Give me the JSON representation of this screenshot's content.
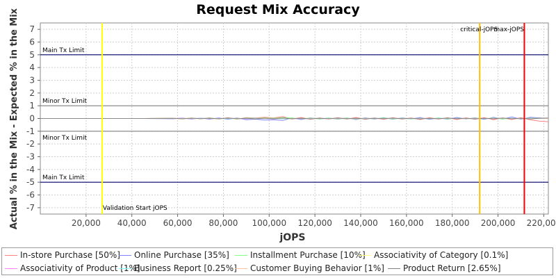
{
  "chart_data": {
    "type": "line",
    "title": "Request Mix Accuracy",
    "xlabel": "jOPS",
    "ylabel": "Actual % in the Mix - Expected % in the Mix",
    "xlim": [
      0,
      222000
    ],
    "ylim": [
      -7.5,
      7.5
    ],
    "x_ticks": [
      20000,
      40000,
      60000,
      80000,
      100000,
      120000,
      140000,
      160000,
      180000,
      200000,
      220000
    ],
    "x_tick_labels": [
      "20,000",
      "40,000",
      "60,000",
      "80,000",
      "100,000",
      "120,000",
      "140,000",
      "160,000",
      "180,000",
      "200,000",
      "220,000"
    ],
    "y_ticks": [
      7,
      6,
      5,
      4,
      3,
      2,
      1,
      0,
      -1,
      -2,
      -3,
      -4,
      -5,
      -6,
      -7
    ],
    "y_tick_labels": [
      "7",
      "6",
      "5",
      "4",
      "3",
      "2",
      "1",
      "0",
      "-1",
      "-2",
      "-3",
      "-4",
      "-5",
      "-6",
      "-7"
    ],
    "grid": true,
    "legend_position": "bottom",
    "horizontal_limits": [
      {
        "label": "Main Tx Limit",
        "y": 5,
        "color": "#000066",
        "label_side": "above"
      },
      {
        "label": "Minor Tx Limit",
        "y": 1,
        "color": "#808080",
        "label_side": "above"
      },
      {
        "label": "Minor Tx Limit",
        "y": -1,
        "color": "#808080",
        "label_side": "below"
      },
      {
        "label": "Main Tx Limit",
        "y": -5,
        "color": "#000066",
        "label_side": "above"
      }
    ],
    "vertical_markers": [
      {
        "label": "Validation Start jOPS",
        "x": 27000,
        "color": "#ffff00",
        "label_pos": "bottom"
      },
      {
        "label": "critical-jOPS",
        "x": 192000,
        "color": "#ffc000",
        "label_pos": "top"
      },
      {
        "label": "max-jOPS",
        "x": 211500,
        "color": "#ff0000",
        "label_pos": "top"
      }
    ],
    "x": [
      0,
      27000,
      46000,
      58000,
      62000,
      66000,
      70000,
      74000,
      78000,
      82000,
      86000,
      90000,
      94000,
      98000,
      102000,
      106000,
      110000,
      114000,
      118000,
      122000,
      126000,
      130000,
      134000,
      138000,
      142000,
      146000,
      150000,
      154000,
      158000,
      162000,
      166000,
      170000,
      174000,
      178000,
      182000,
      186000,
      190000,
      194000,
      198000,
      202000,
      206000,
      210000,
      214000,
      218000,
      222000
    ],
    "series": [
      {
        "name": "In-store Purchase [50%]",
        "color": "#ff8080",
        "values": [
          0,
          0,
          0,
          0.02,
          -0.03,
          0.04,
          -0.02,
          0.05,
          -0.04,
          0.06,
          -0.05,
          0.07,
          0.05,
          0.1,
          0.05,
          0.15,
          -0.05,
          0.08,
          -0.06,
          0.05,
          -0.04,
          0.06,
          -0.05,
          0.08,
          -0.06,
          0.05,
          -0.07,
          0.06,
          -0.05,
          0.04,
          -0.08,
          0.07,
          -0.05,
          0.06,
          -0.08,
          0.05,
          -0.06,
          0.07,
          -0.1,
          0.05,
          -0.08,
          0.06,
          -0.1,
          -0.2,
          -0.25
        ]
      },
      {
        "name": "Online Purchase [35%]",
        "color": "#8080ff",
        "values": [
          0,
          0,
          0,
          -0.02,
          0.03,
          -0.04,
          0.03,
          -0.05,
          0.04,
          -0.06,
          0.05,
          -0.1,
          -0.05,
          -0.12,
          -0.1,
          -0.15,
          0.05,
          -0.08,
          0.06,
          -0.05,
          0.04,
          -0.06,
          0.05,
          -0.08,
          0.06,
          -0.05,
          0.07,
          -0.06,
          0.05,
          -0.04,
          0.08,
          -0.07,
          0.05,
          -0.06,
          0.08,
          -0.05,
          0.06,
          -0.07,
          0.1,
          -0.05,
          0.12,
          -0.06,
          0.1,
          0.05,
          0.0
        ]
      },
      {
        "name": "Installment Purchase [10%]",
        "color": "#80ff80",
        "values": [
          0,
          0,
          0,
          0.01,
          -0.02,
          0.02,
          -0.01,
          0.03,
          -0.02,
          0.03,
          -0.03,
          0.04,
          0.02,
          0.05,
          0.02,
          0.06,
          0.04,
          -0.03,
          0.05,
          -0.04,
          0.03,
          -0.03,
          0.04,
          -0.05,
          0.03,
          -0.02,
          0.04,
          -0.03,
          0.02,
          -0.04,
          0.03,
          -0.02,
          0.04,
          -0.03,
          0.02,
          -0.03,
          0.04,
          -0.02,
          0.03,
          -0.04,
          0.02,
          -0.03,
          0.04,
          0.02,
          0.0
        ]
      },
      {
        "name": "Associativity of Category [0.1%]",
        "color": "#ffff80",
        "values": [
          0,
          0,
          0,
          0,
          0,
          0.01,
          0,
          0,
          -0.01,
          0,
          0.01,
          0,
          0,
          0.01,
          0,
          -0.01,
          0,
          0,
          0.01,
          0,
          0,
          -0.01,
          0,
          0,
          0.01,
          0,
          0,
          0,
          -0.01,
          0,
          0,
          0.01,
          0,
          0,
          0,
          -0.01,
          0,
          0,
          0.01,
          0,
          0,
          0,
          0,
          0,
          0
        ]
      },
      {
        "name": "Associativity of Product [1%]",
        "color": "#ff80ff",
        "values": [
          0,
          0,
          0,
          0,
          0.01,
          -0.01,
          0.01,
          0,
          -0.01,
          0.01,
          0,
          -0.01,
          0.01,
          0,
          -0.01,
          0.01,
          0,
          -0.01,
          0.01,
          0,
          -0.01,
          0.01,
          0,
          -0.01,
          0.01,
          0,
          -0.01,
          0.01,
          0,
          -0.01,
          0.01,
          0,
          -0.01,
          0.01,
          0,
          -0.01,
          0.01,
          0,
          -0.01,
          0.01,
          0,
          -0.01,
          0.01,
          0,
          0
        ]
      },
      {
        "name": "Business Report [0.25%]",
        "color": "#80ffff",
        "values": [
          0,
          0,
          0,
          0,
          0,
          0,
          0.01,
          0,
          0,
          -0.01,
          0,
          0,
          0.01,
          0,
          0,
          -0.01,
          0,
          0,
          0,
          0.01,
          0,
          0,
          -0.01,
          0,
          0,
          0.01,
          0,
          0,
          0,
          -0.01,
          0,
          0,
          0.01,
          0,
          0,
          0,
          -0.01,
          0,
          0,
          0.01,
          0,
          0,
          0,
          0,
          0
        ]
      },
      {
        "name": "Customer Buying Behavior [1%]",
        "color": "#ffc0a0",
        "values": [
          0,
          0,
          0,
          0.01,
          -0.01,
          0.02,
          -0.01,
          0.01,
          -0.02,
          0.02,
          -0.01,
          0.02,
          -0.02,
          0.01,
          -0.02,
          0.02,
          -0.01,
          0.02,
          -0.02,
          0.01,
          -0.01,
          0.02,
          -0.02,
          0.01,
          -0.02,
          0.02,
          -0.01,
          0.02,
          -0.02,
          0.01,
          -0.02,
          0.02,
          -0.01,
          0.02,
          -0.02,
          0.01,
          -0.02,
          0.02,
          -0.01,
          0.02,
          -0.02,
          0.01,
          -0.02,
          0.01,
          0
        ]
      },
      {
        "name": "Product Return [2.65%]",
        "color": "#808080",
        "values": [
          0,
          0,
          0,
          0.01,
          -0.02,
          0.02,
          -0.01,
          0.02,
          -0.02,
          0.03,
          -0.02,
          0.02,
          -0.03,
          0.02,
          -0.02,
          0.03,
          -0.02,
          0.02,
          -0.03,
          0.02,
          -0.02,
          0.03,
          -0.02,
          0.02,
          -0.03,
          0.02,
          -0.02,
          0.03,
          -0.02,
          0.02,
          -0.03,
          0.02,
          -0.02,
          0.03,
          -0.02,
          0.02,
          -0.03,
          0.02,
          -0.02,
          0.03,
          -0.02,
          0.02,
          -0.03,
          0.02,
          0.03
        ]
      }
    ]
  }
}
